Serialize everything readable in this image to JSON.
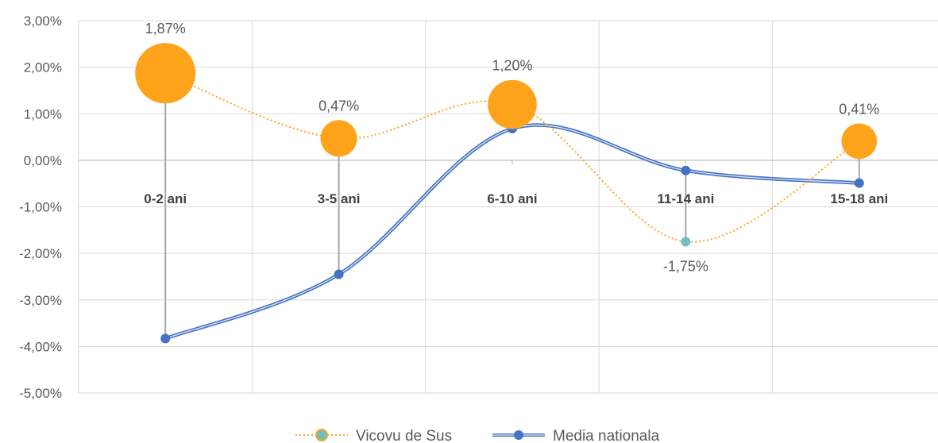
{
  "chart_data": {
    "type": "line",
    "categories": [
      "0-2 ani",
      "3-5 ani",
      "6-10 ani",
      "11-14 ani",
      "15-18 ani"
    ],
    "ylim": [
      -5,
      3
    ],
    "yticks": [
      3,
      2,
      1,
      0,
      -1,
      -2,
      -3,
      -4,
      -5
    ],
    "ytick_labels": [
      "3,00%",
      "2,00%",
      "1,00%",
      "0,00%",
      "-1,00%",
      "-2,00%",
      "-3,00%",
      "-4,00%",
      "-5,00%"
    ],
    "grid": true,
    "legend": "bottom",
    "series": [
      {
        "name": "Vicovu de Sus",
        "values": [
          1.87,
          0.47,
          1.2,
          -1.75,
          0.41
        ],
        "labels": [
          "1,87%",
          "0,47%",
          "1,20%",
          "-1,75%",
          "0,41%"
        ],
        "color": "#ffa31a",
        "negative_color": "#6fbfbf",
        "style": "dotted"
      },
      {
        "name": "Media nationala",
        "values": [
          -3.83,
          -2.45,
          0.68,
          -0.22,
          -0.49
        ],
        "color": "#4472c4",
        "style": "double"
      }
    ]
  }
}
